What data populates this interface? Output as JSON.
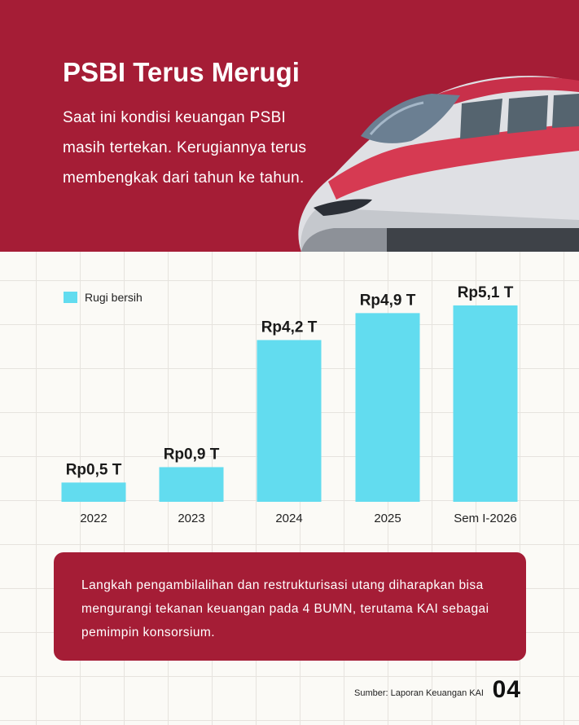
{
  "header": {
    "title": "PSBI Terus Merugi",
    "subtitle": "Saat ini kondisi keuangan PSBI masih tertekan. Kerugiannya terus membengkak dari tahun ke tahun."
  },
  "chart_data": {
    "type": "bar",
    "categories": [
      "2022",
      "2023",
      "2024",
      "2025",
      "Sem I-2026"
    ],
    "series": [
      {
        "name": "Rugi bersih",
        "values": [
          0.5,
          0.9,
          4.2,
          4.9,
          5.1
        ],
        "labels": [
          "Rp0,5 T",
          "Rp0,9 T",
          "Rp4,2 T",
          "Rp4,9 T",
          "Rp5,1 T"
        ]
      }
    ],
    "color": "#62dcef",
    "ylim": [
      0,
      5.5
    ],
    "grid": false,
    "legend_position": "top-left"
  },
  "info": {
    "text": "Langkah pengambilalihan dan restrukturisasi utang diharapkan bisa mengurangi tekanan keuangan pada 4 BUMN, terutama KAI sebagai pemimpin konsorsium."
  },
  "footer": {
    "source": "Sumber: Laporan Keuangan KAI",
    "page": "04"
  },
  "colors": {
    "brand": "#a51d36",
    "bar": "#62dcef",
    "background": "#fbfaf6"
  },
  "icons": {
    "header_image": "high-speed-train"
  }
}
